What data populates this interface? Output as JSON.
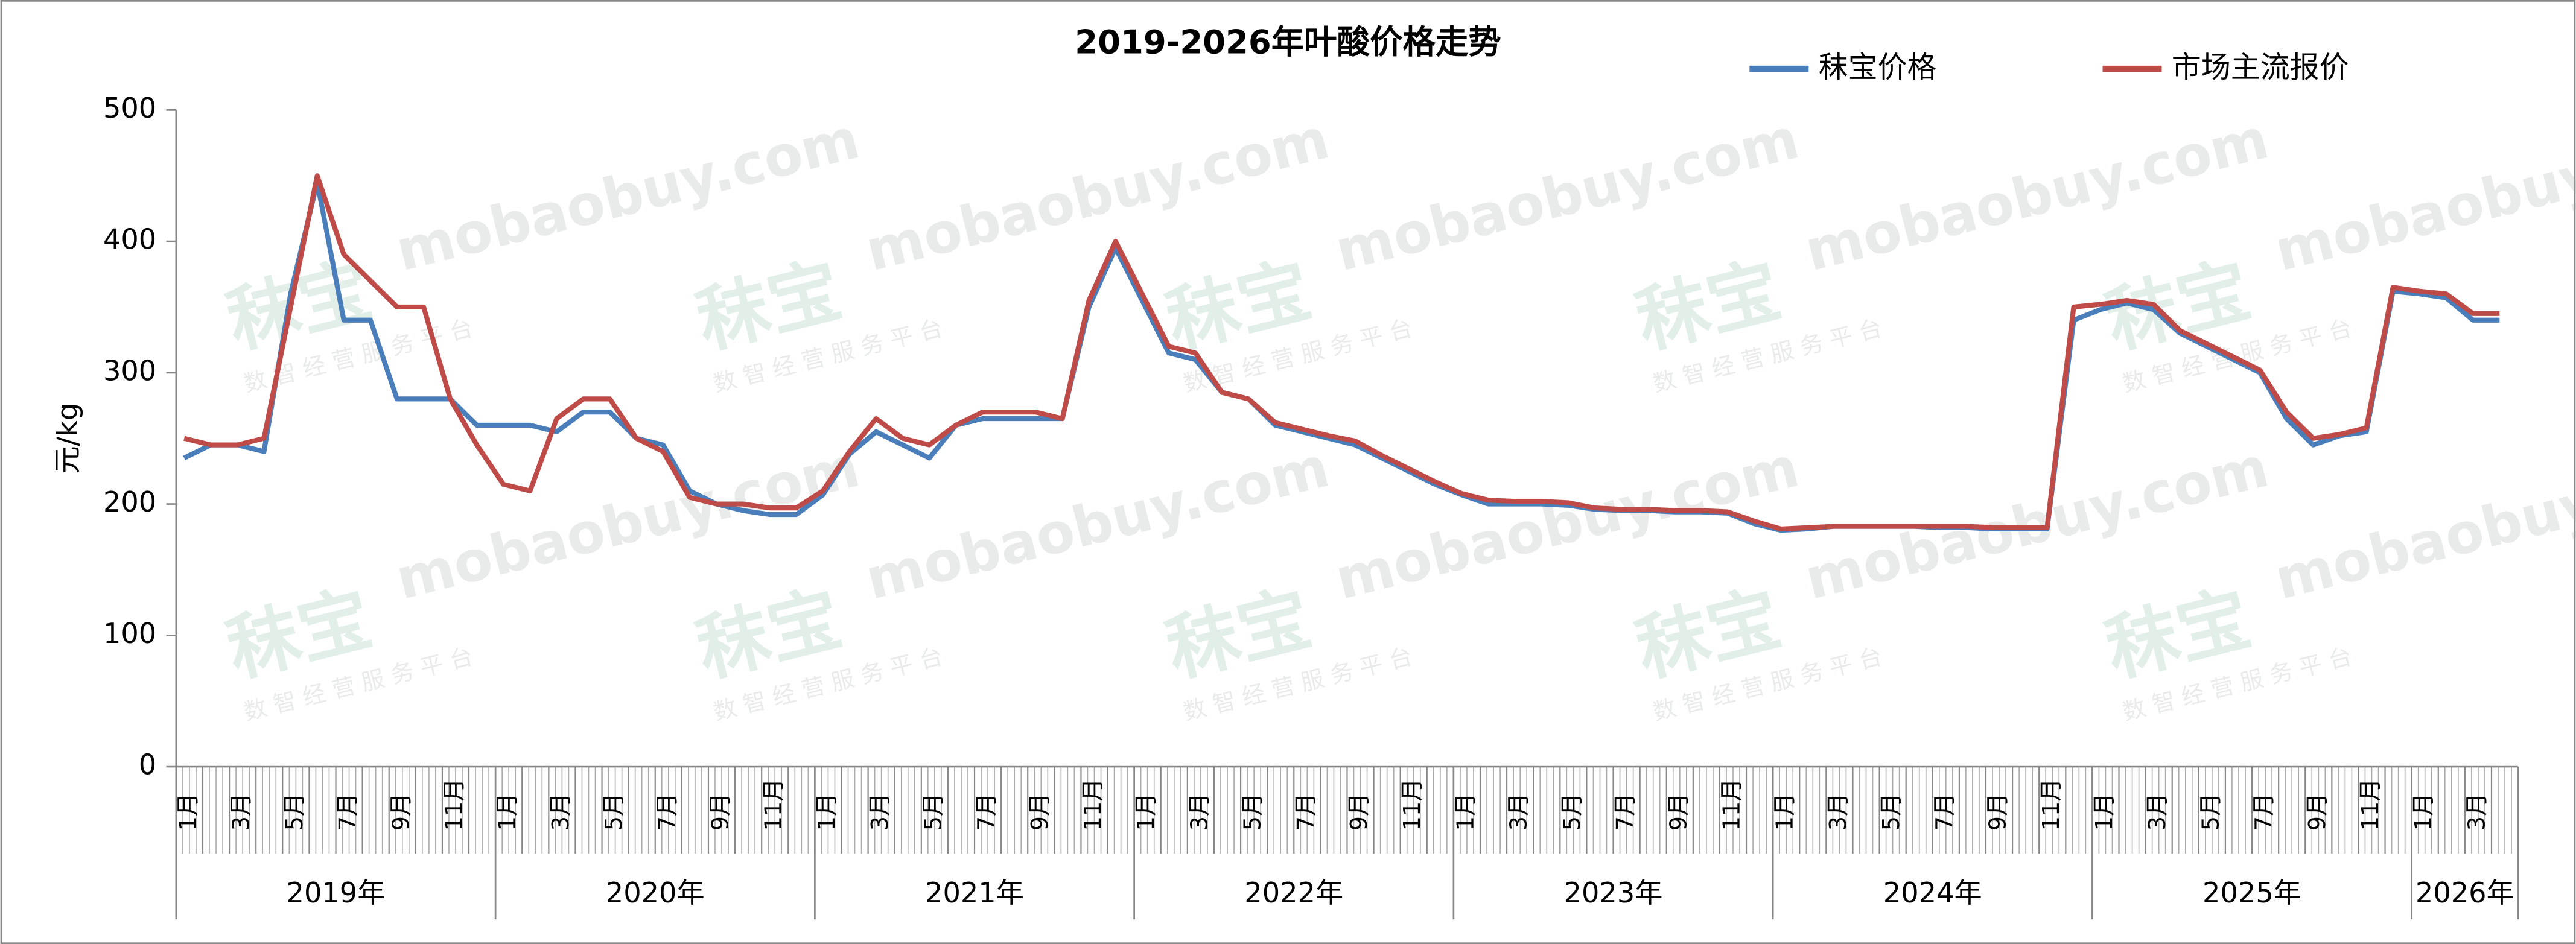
{
  "chart_data": {
    "type": "line",
    "title": "2019-2026年叶酸价格走势",
    "y_label": "元/kg",
    "categories": [
      "1月",
      null,
      "3月",
      null,
      "5月",
      null,
      "7月",
      null,
      "9月",
      null,
      "11月",
      null,
      "1月",
      null,
      "3月",
      null,
      "5月",
      null,
      "7月",
      null,
      "9月",
      null,
      "11月",
      null,
      "1月",
      null,
      "3月",
      null,
      "5月",
      null,
      "7月",
      null,
      "9月",
      null,
      "11月",
      null,
      "1月",
      null,
      "3月",
      null,
      "5月",
      null,
      "7月",
      null,
      "9月",
      null,
      "11月",
      null,
      "1月",
      null,
      "3月",
      null,
      "5月",
      null,
      "7月",
      null,
      "9月",
      null,
      "11月",
      null,
      "1月",
      null,
      "3月",
      null,
      "5月",
      null,
      "7月",
      null,
      "9月",
      null,
      "11月",
      null,
      "1月",
      null,
      "3月",
      null,
      "5月",
      null,
      "7月",
      null,
      "9月",
      null,
      "11月",
      null,
      "1月",
      null,
      "3月",
      null
    ],
    "years": [
      "2019年",
      "2020年",
      "2021年",
      "2022年",
      "2023年",
      "2024年",
      "2025年",
      "2026年"
    ],
    "series": [
      {
        "name": "秣宝价格",
        "color": "#4a7ebb",
        "values": [
          235,
          245,
          245,
          240,
          360,
          445,
          340,
          340,
          280,
          280,
          280,
          260,
          260,
          260,
          255,
          270,
          270,
          250,
          245,
          210,
          200,
          195,
          192,
          192,
          207,
          238,
          255,
          245,
          235,
          260,
          265,
          265,
          265,
          265,
          350,
          395,
          355,
          315,
          310,
          285,
          280,
          260,
          255,
          250,
          245,
          235,
          225,
          215,
          207,
          200,
          200,
          200,
          199,
          196,
          195,
          195,
          194,
          194,
          193,
          185,
          180,
          181,
          183,
          183,
          183,
          183,
          182,
          182,
          181,
          181,
          181,
          340,
          348,
          353,
          348,
          330,
          320,
          310,
          300,
          265,
          245,
          252,
          255,
          362,
          360,
          357,
          340,
          340
        ]
      },
      {
        "name": "市场主流报价",
        "color": "#be4b48",
        "values": [
          250,
          245,
          245,
          250,
          350,
          450,
          390,
          370,
          350,
          350,
          280,
          245,
          215,
          210,
          265,
          280,
          280,
          250,
          240,
          205,
          200,
          200,
          197,
          197,
          210,
          240,
          265,
          250,
          245,
          260,
          270,
          270,
          270,
          265,
          355,
          400,
          360,
          320,
          315,
          285,
          280,
          262,
          257,
          252,
          248,
          237,
          227,
          217,
          208,
          203,
          202,
          202,
          201,
          197,
          196,
          196,
          195,
          195,
          194,
          187,
          181,
          182,
          183,
          183,
          183,
          183,
          183,
          183,
          182,
          182,
          182,
          350,
          352,
          355,
          352,
          332,
          322,
          312,
          302,
          270,
          250,
          253,
          258,
          365,
          362,
          360,
          345,
          345
        ]
      }
    ],
    "ylim": [
      0,
      500
    ],
    "yticks": [
      0,
      100,
      200,
      300,
      400,
      500
    ]
  },
  "watermark": {
    "brand": "秣宝",
    "site": "mobaobuy.com",
    "slogan": "数 智 经 营 服 务 平 台"
  }
}
